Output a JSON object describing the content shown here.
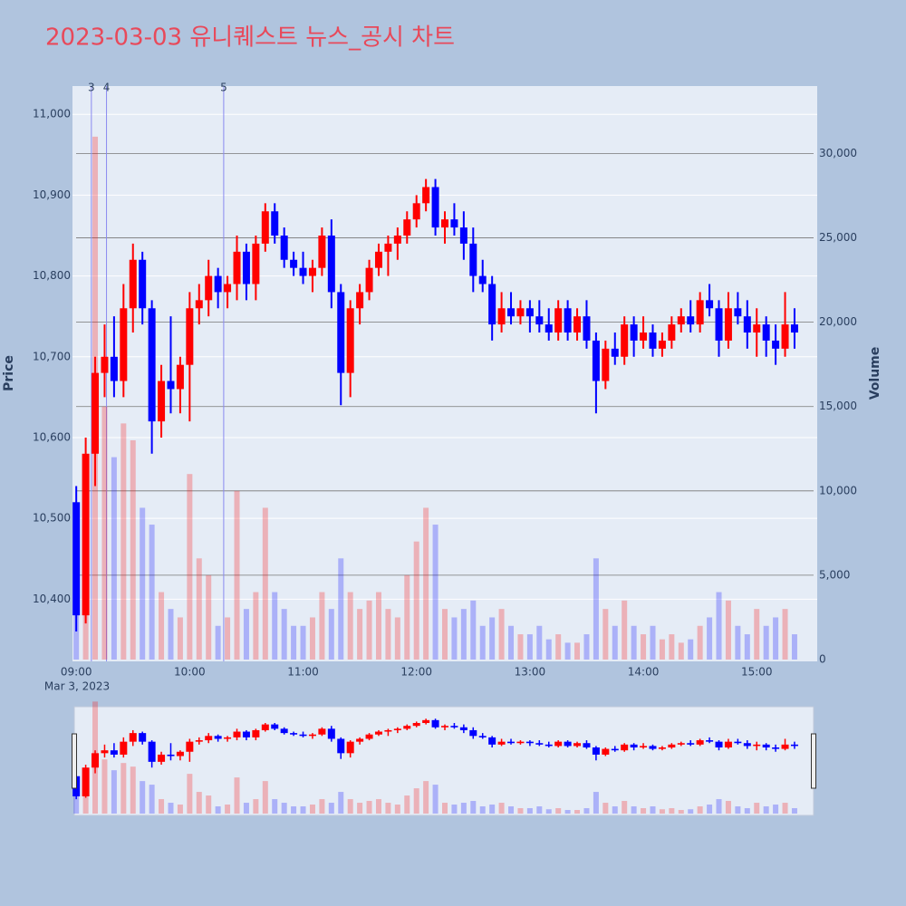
{
  "chart_data": {
    "type": "candlestick",
    "title": "2023-03-03 유니퀘스트 뉴스_공시 차트",
    "y_label": "Price",
    "y2_label": "Volume",
    "date_label": "Mar 3, 2023",
    "increasing_color": "#ff0000",
    "decreasing_color": "#0000ff",
    "x": [
      "09:00",
      "09:05",
      "09:10",
      "09:15",
      "09:20",
      "09:25",
      "09:30",
      "09:35",
      "09:40",
      "09:45",
      "09:50",
      "09:55",
      "10:00",
      "10:05",
      "10:10",
      "10:15",
      "10:20",
      "10:25",
      "10:30",
      "10:35",
      "10:40",
      "10:45",
      "10:50",
      "10:55",
      "11:00",
      "11:05",
      "11:10",
      "11:15",
      "11:20",
      "11:25",
      "11:30",
      "11:35",
      "11:40",
      "11:45",
      "11:50",
      "11:55",
      "12:00",
      "12:05",
      "12:10",
      "12:15",
      "12:20",
      "12:25",
      "12:30",
      "12:35",
      "12:40",
      "12:45",
      "12:50",
      "12:55",
      "13:00",
      "13:05",
      "13:10",
      "13:15",
      "13:20",
      "13:25",
      "13:30",
      "13:35",
      "13:40",
      "13:45",
      "13:50",
      "13:55",
      "14:00",
      "14:05",
      "14:10",
      "14:15",
      "14:20",
      "14:25",
      "14:30",
      "14:35",
      "14:40",
      "14:45",
      "14:50",
      "14:55",
      "15:00",
      "15:05",
      "15:10",
      "15:15",
      "15:20"
    ],
    "open": [
      10520,
      10380,
      10580,
      10680,
      10700,
      10670,
      10760,
      10820,
      10760,
      10620,
      10670,
      10660,
      10690,
      10760,
      10770,
      10800,
      10780,
      10790,
      10830,
      10790,
      10840,
      10880,
      10850,
      10820,
      10810,
      10800,
      10810,
      10850,
      10780,
      10680,
      10760,
      10780,
      10810,
      10830,
      10840,
      10850,
      10870,
      10890,
      10910,
      10860,
      10870,
      10860,
      10840,
      10800,
      10790,
      10740,
      10760,
      10750,
      10760,
      10750,
      10740,
      10730,
      10760,
      10730,
      10750,
      10720,
      10670,
      10710,
      10700,
      10740,
      10720,
      10730,
      10710,
      10720,
      10740,
      10750,
      10740,
      10770,
      10760,
      10720,
      10760,
      10750,
      10730,
      10740,
      10720,
      10710,
      10740
    ],
    "high": [
      10540,
      10600,
      10700,
      10740,
      10750,
      10790,
      10840,
      10830,
      10770,
      10690,
      10750,
      10700,
      10780,
      10790,
      10820,
      10810,
      10800,
      10850,
      10840,
      10850,
      10890,
      10890,
      10860,
      10830,
      10830,
      10820,
      10860,
      10870,
      10790,
      10770,
      10790,
      10820,
      10840,
      10850,
      10860,
      10880,
      10900,
      10920,
      10920,
      10880,
      10890,
      10880,
      10860,
      10820,
      10800,
      10780,
      10780,
      10770,
      10770,
      10770,
      10760,
      10770,
      10770,
      10760,
      10770,
      10730,
      10720,
      10730,
      10750,
      10750,
      10750,
      10740,
      10730,
      10750,
      10760,
      10770,
      10780,
      10790,
      10770,
      10780,
      10780,
      10770,
      10760,
      10750,
      10740,
      10780,
      10760
    ],
    "low": [
      10360,
      10370,
      10540,
      10650,
      10650,
      10650,
      10730,
      10740,
      10580,
      10600,
      10630,
      10630,
      10620,
      10740,
      10750,
      10760,
      10760,
      10770,
      10770,
      10770,
      10830,
      10840,
      10810,
      10800,
      10790,
      10780,
      10800,
      10760,
      10640,
      10650,
      10740,
      10770,
      10800,
      10800,
      10820,
      10840,
      10860,
      10880,
      10850,
      10840,
      10850,
      10820,
      10780,
      10780,
      10720,
      10730,
      10740,
      10740,
      10730,
      10730,
      10720,
      10720,
      10720,
      10720,
      10710,
      10630,
      10660,
      10690,
      10690,
      10700,
      10710,
      10700,
      10700,
      10710,
      10730,
      10730,
      10730,
      10750,
      10700,
      10710,
      10740,
      10710,
      10700,
      10700,
      10690,
      10700,
      10710
    ],
    "close": [
      10380,
      10580,
      10680,
      10700,
      10670,
      10760,
      10820,
      10760,
      10620,
      10670,
      10660,
      10690,
      10760,
      10770,
      10800,
      10780,
      10790,
      10830,
      10790,
      10840,
      10880,
      10850,
      10820,
      10810,
      10800,
      10810,
      10850,
      10780,
      10680,
      10760,
      10780,
      10810,
      10830,
      10840,
      10850,
      10870,
      10890,
      10910,
      10860,
      10870,
      10860,
      10840,
      10800,
      10790,
      10740,
      10760,
      10750,
      10760,
      10750,
      10740,
      10730,
      10760,
      10730,
      10750,
      10720,
      10670,
      10710,
      10700,
      10740,
      10720,
      10730,
      10710,
      10720,
      10740,
      10750,
      10740,
      10770,
      10760,
      10720,
      10760,
      10750,
      10730,
      10740,
      10720,
      10710,
      10740,
      10730
    ],
    "volume": [
      9000,
      12000,
      31000,
      15000,
      12000,
      14000,
      13000,
      9000,
      8000,
      4000,
      3000,
      2500,
      11000,
      6000,
      5000,
      2000,
      2500,
      10000,
      3000,
      4000,
      9000,
      4000,
      3000,
      2000,
      2000,
      2500,
      4000,
      3000,
      6000,
      4000,
      3000,
      3500,
      4000,
      3000,
      2500,
      5000,
      7000,
      9000,
      8000,
      3000,
      2500,
      3000,
      3500,
      2000,
      2500,
      3000,
      2000,
      1500,
      1500,
      2000,
      1200,
      1500,
      1000,
      1000,
      1500,
      6000,
      3000,
      2000,
      3500,
      2000,
      1500,
      2000,
      1200,
      1500,
      1000,
      1200,
      2000,
      2500,
      4000,
      3500,
      2000,
      1500,
      3000,
      2000,
      2500,
      3000,
      1500
    ],
    "events": [
      {
        "x": "09:08",
        "label": "3"
      },
      {
        "x": "09:16",
        "label": "4"
      },
      {
        "x": "10:18",
        "label": "5"
      }
    ],
    "xlim": [
      "08:58",
      "15:32"
    ],
    "xticks": [
      "09:00",
      "10:00",
      "11:00",
      "12:00",
      "13:00",
      "14:00",
      "15:00"
    ],
    "ylim": [
      10323,
      11035
    ],
    "yticks": [
      {
        "value": 10400,
        "label": "10,400"
      },
      {
        "value": 10500,
        "label": "10,500"
      },
      {
        "value": 10600,
        "label": "10,600"
      },
      {
        "value": 10700,
        "label": "10,700"
      },
      {
        "value": 10800,
        "label": "10,800"
      },
      {
        "value": 10900,
        "label": "10,900"
      },
      {
        "value": 11000,
        "label": "11,000"
      }
    ],
    "y2lim": [
      0,
      34000
    ],
    "y2ticks": [
      0,
      {
        "value": 5000,
        "label": "5,000"
      },
      {
        "value": 10000,
        "label": "10,000"
      },
      {
        "value": 15000,
        "label": "15,000"
      },
      {
        "value": 20000,
        "label": "20,000"
      },
      {
        "value": 25000,
        "label": "25,000"
      },
      {
        "value": 30000,
        "label": "30,000"
      }
    ],
    "grid": true
  }
}
